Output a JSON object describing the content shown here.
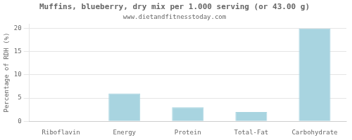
{
  "chart_data": {
    "type": "bar",
    "title": "Muffins, blueberry, dry mix per 1.000 serving (or 43.00 g)",
    "subtitle": "www.dietandfitnesstoday.com",
    "categories": [
      "Riboflavin",
      "Energy",
      "Protein",
      "Total-Fat",
      "Carbohydrate"
    ],
    "values": [
      0,
      6,
      3,
      2,
      20
    ],
    "color": "#a8d4e0",
    "ylabel": "Percentage of RDH (%)",
    "ylim": [
      0,
      21
    ],
    "yticks": [
      0,
      5,
      10,
      15,
      20
    ],
    "grid": true
  }
}
